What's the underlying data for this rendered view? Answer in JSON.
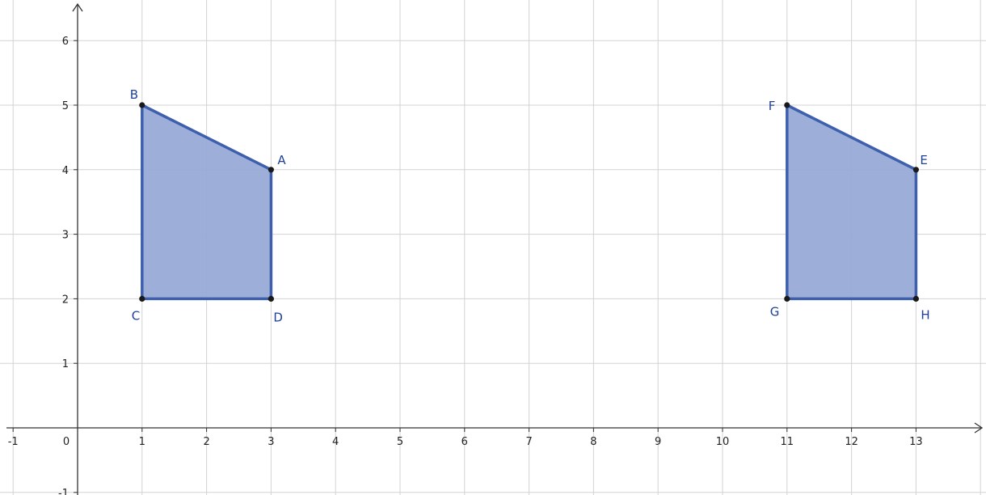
{
  "axes": {
    "x_ticks": [
      "-1",
      "0",
      "1",
      "2",
      "3",
      "4",
      "5",
      "6",
      "7",
      "8",
      "9",
      "10",
      "11",
      "12",
      "13"
    ],
    "y_ticks": [
      "-1",
      "1",
      "2",
      "3",
      "4",
      "5",
      "6"
    ],
    "x_range": [
      -1.1,
      14.2
    ],
    "y_range": [
      -1.1,
      6.6
    ]
  },
  "colors": {
    "polygon_fill": "#98abd6",
    "polygon_stroke": "#3e5fae",
    "point_fill": "#1a1a1a",
    "label": "#1f3f99",
    "grid": "#d3d3d3",
    "axis": "#333333"
  },
  "points": [
    {
      "name": "A",
      "x": 3,
      "y": 4
    },
    {
      "name": "B",
      "x": 1,
      "y": 5
    },
    {
      "name": "C",
      "x": 1,
      "y": 2
    },
    {
      "name": "D",
      "x": 3,
      "y": 2
    },
    {
      "name": "E",
      "x": 13,
      "y": 4
    },
    {
      "name": "F",
      "x": 11,
      "y": 5
    },
    {
      "name": "G",
      "x": 11,
      "y": 2
    },
    {
      "name": "H",
      "x": 13,
      "y": 2
    }
  ],
  "polygons": [
    {
      "vertices": [
        "A",
        "B",
        "C",
        "D"
      ]
    },
    {
      "vertices": [
        "E",
        "F",
        "G",
        "H"
      ]
    }
  ]
}
